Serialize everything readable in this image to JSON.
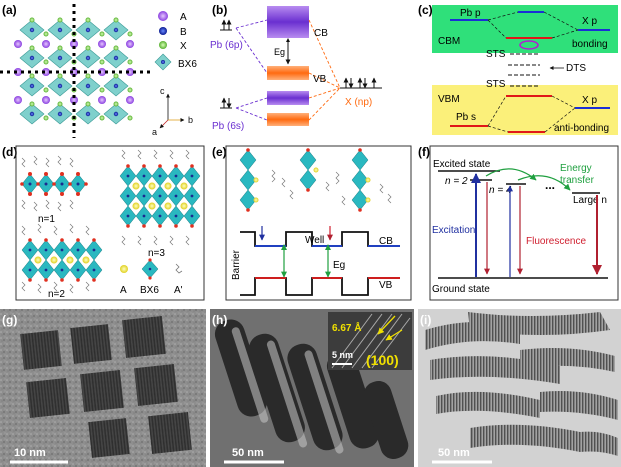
{
  "panel_labels": {
    "a": "(a)",
    "b": "(b)",
    "c": "(c)",
    "d": "(d)",
    "e": "(e)",
    "f": "(f)",
    "g": "(g)",
    "h": "(h)",
    "i": "(i)"
  },
  "a": {
    "legend": [
      "A",
      "B",
      "X",
      "BX6"
    ],
    "axes": {
      "c": "c",
      "b": "b",
      "a": "a"
    }
  },
  "b": {
    "pb_6p": "Pb (6p)",
    "pb_6s": "Pb (6s)",
    "x_np": "X (np)",
    "cb": "CB",
    "vb": "VB",
    "eg": "Eg"
  },
  "c": {
    "pb_p": "Pb p",
    "x_p_top": "X p",
    "cbm": "CBM",
    "bonding": "bonding",
    "sts_top": "STS",
    "dts": "DTS",
    "sts_bottom": "STS",
    "vbm": "VBM",
    "x_p_bottom": "X p",
    "pb_s": "Pb s",
    "antibonding": "anti-bonding",
    "colors": {
      "top_bg": "#2fe07a",
      "bottom_bg": "#fbf07a",
      "blue": "#1a2fd6",
      "red": "#e01818"
    }
  },
  "d": {
    "n1": "n=1",
    "n2": "n=2",
    "n3": "n=3",
    "legend": [
      "A",
      "BX6",
      "A'"
    ]
  },
  "e": {
    "well": "Well",
    "barrier": "Barrier",
    "cb": "CB",
    "vb": "VB",
    "eg": "Eg"
  },
  "f": {
    "excited_state": "Excited state",
    "ground_state": "Ground state",
    "n2": "n = 2",
    "n4": "n = 4",
    "dots": "...",
    "large_n": "Large n",
    "energy_transfer_1": "Energy",
    "energy_transfer_2": "transfer",
    "excitation": "Excitation",
    "fluorescence": "Fluorescence"
  },
  "g": {
    "scale": "10 nm"
  },
  "h": {
    "scale": "50 nm",
    "inset_scale": "5 nm",
    "d_spacing": "6.67 Å",
    "plane": "(100)"
  },
  "i": {
    "scale": "50 nm"
  }
}
